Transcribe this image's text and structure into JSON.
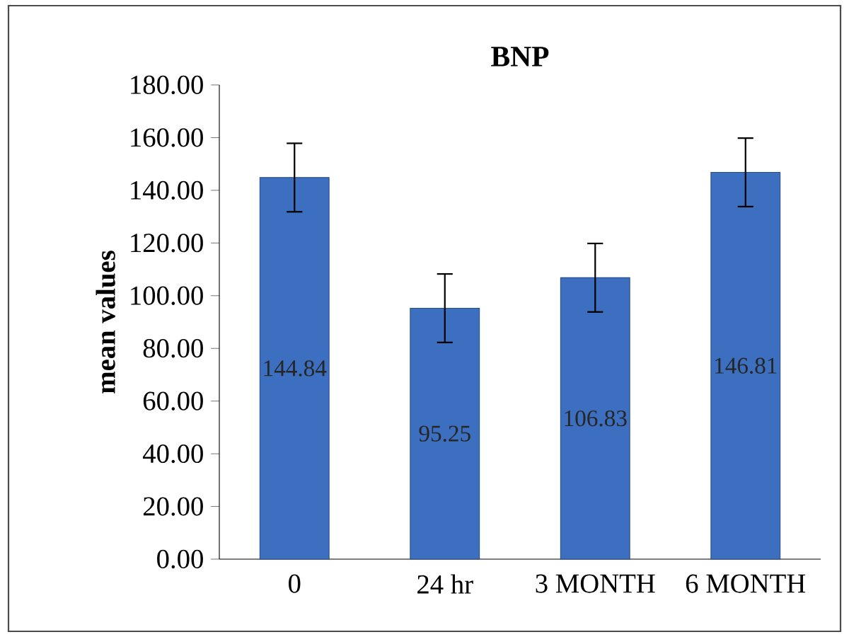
{
  "chart_data": {
    "type": "bar",
    "title": "BNP",
    "ylabel": "mean values",
    "categories": [
      "0",
      "24 hr",
      "3 MONTH",
      "6 MONTH"
    ],
    "values": [
      144.84,
      95.25,
      106.83,
      146.81
    ],
    "errors": [
      13,
      13,
      13,
      13
    ],
    "color": "#3c6fbf",
    "data_labels": true,
    "ylim": [
      0,
      180
    ],
    "yticks": [
      {
        "value": 0,
        "label": "0.00"
      },
      {
        "value": 20,
        "label": "20.00"
      },
      {
        "value": 40,
        "label": "40.00"
      },
      {
        "value": 60,
        "label": "60.00"
      },
      {
        "value": 80,
        "label": "80.00"
      },
      {
        "value": 100,
        "label": "100.00"
      },
      {
        "value": 120,
        "label": "120.00"
      },
      {
        "value": 140,
        "label": "140.00"
      },
      {
        "value": 160,
        "label": "160.00"
      },
      {
        "value": 180,
        "label": "180.00"
      }
    ],
    "grid": false
  }
}
